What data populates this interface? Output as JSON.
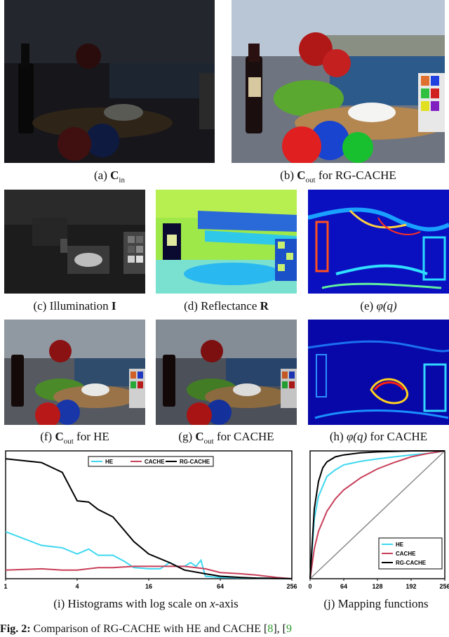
{
  "captions": {
    "a_prefix": "(a) ",
    "a_sym": "C",
    "a_sub": "in",
    "b_prefix": "(b) ",
    "b_sym": "C",
    "b_sub": "out",
    "b_suffix": " for RG-CACHE",
    "c_prefix": "(c) Illumination ",
    "c_sym": "I",
    "d_prefix": "(d) Reflectance ",
    "d_sym": "R",
    "e_prefix": "(e) ",
    "e_sym": "φ(q)",
    "f_prefix": "(f) ",
    "f_sym": "C",
    "f_sub": "out",
    "f_suffix": " for HE",
    "g_prefix": "(g) ",
    "g_sym": "C",
    "g_sub": "out",
    "g_suffix": " for CACHE",
    "h_prefix": "(h) ",
    "h_sym": "φ(q)",
    "h_suffix": " for CACHE",
    "i_prefix": "(i) Histograms with log scale on ",
    "i_sym": "x",
    "i_suffix": "-axis",
    "j": "(j) Mapping functions"
  },
  "figure_caption": {
    "label": "Fig. 2:",
    "text": " Comparison of RG-CACHE with HE and CACHE [",
    "ref1": "8",
    "sep": "], [",
    "ref2": "9"
  },
  "colors": {
    "HE": "#3fd8f0",
    "CACHE": "#c8405a",
    "RG-CACHE": "#000000",
    "identity": "#8a8a8a"
  },
  "chart_data": [
    {
      "type": "line",
      "xscale": "log",
      "xticks": [
        "1",
        "4",
        "16",
        "64",
        "256"
      ],
      "xlim": [
        1,
        256
      ],
      "legend": "top",
      "series": [
        {
          "name": "HE",
          "x": [
            1,
            2,
            3,
            4,
            5,
            6,
            8,
            10,
            12,
            16,
            20,
            24,
            28,
            32,
            36,
            40,
            44,
            48,
            64,
            128,
            256
          ],
          "y": [
            0.38,
            0.27,
            0.25,
            0.2,
            0.24,
            0.19,
            0.19,
            0.14,
            0.09,
            0.08,
            0.08,
            0.13,
            0.1,
            0.1,
            0.13,
            0.1,
            0.15,
            0.02,
            0.01,
            0.005,
            0.0
          ]
        },
        {
          "name": "CACHE",
          "x": [
            1,
            2,
            3,
            4,
            6,
            8,
            12,
            16,
            24,
            32,
            48,
            64,
            96,
            128,
            192,
            256
          ],
          "y": [
            0.07,
            0.08,
            0.07,
            0.07,
            0.09,
            0.09,
            0.1,
            0.1,
            0.1,
            0.1,
            0.08,
            0.05,
            0.04,
            0.03,
            0.01,
            0.0
          ]
        },
        {
          "name": "RG-CACHE",
          "x": [
            1,
            2,
            3,
            4,
            5,
            6,
            8,
            12,
            16,
            24,
            32,
            48,
            64,
            96,
            128,
            256
          ],
          "y": [
            0.97,
            0.94,
            0.86,
            0.63,
            0.62,
            0.56,
            0.5,
            0.3,
            0.2,
            0.13,
            0.07,
            0.04,
            0.02,
            0.01,
            0.005,
            0.0
          ]
        }
      ]
    },
    {
      "type": "line",
      "xticks": [
        "0",
        "64",
        "128",
        "192",
        "256"
      ],
      "xlim": [
        0,
        256
      ],
      "ylim": [
        0,
        256
      ],
      "legend": "bottom-right",
      "series": [
        {
          "name": "HE",
          "x": [
            0,
            8,
            16,
            32,
            48,
            64,
            96,
            128,
            160,
            192,
            224,
            240,
            256
          ],
          "y": [
            0,
            120,
            165,
            205,
            218,
            228,
            235,
            240,
            244,
            248,
            251,
            253,
            256
          ]
        },
        {
          "name": "CACHE",
          "x": [
            0,
            8,
            16,
            32,
            48,
            64,
            96,
            128,
            160,
            192,
            224,
            256
          ],
          "y": [
            0,
            60,
            95,
            135,
            160,
            178,
            202,
            220,
            233,
            244,
            251,
            256
          ]
        },
        {
          "name": "RG-CACHE",
          "x": [
            0,
            8,
            16,
            24,
            32,
            48,
            64,
            96,
            128,
            160,
            192,
            224,
            256
          ],
          "y": [
            0,
            140,
            195,
            222,
            234,
            244,
            248,
            252,
            254,
            255,
            256,
            256,
            256
          ]
        },
        {
          "name": "",
          "x": [
            0,
            256
          ],
          "y": [
            0,
            256
          ]
        }
      ]
    }
  ]
}
